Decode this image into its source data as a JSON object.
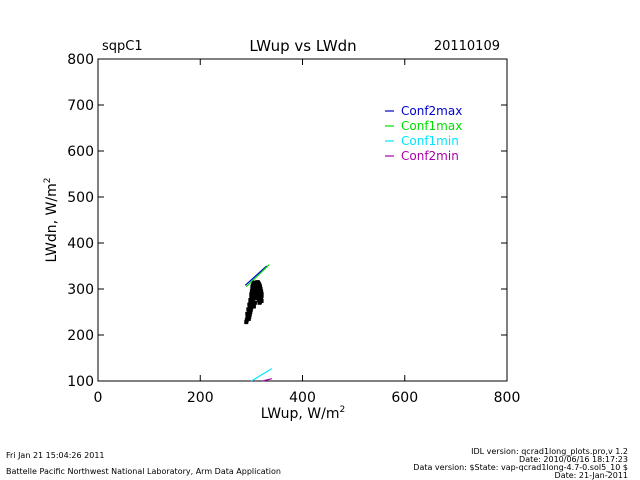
{
  "header": {
    "site": "sqpC1",
    "title": "LWup vs LWdn",
    "date": "20110109"
  },
  "colors": {
    "Conf2max": "#0000cc",
    "Conf1max": "#00dd00",
    "Conf1min": "#00e5ff",
    "Conf2min": "#aa00aa",
    "points": "#000000"
  },
  "chart_data": {
    "type": "scatter",
    "title": "LWup vs LWdn",
    "xlabel": "LWup, W/m",
    "xlabel_sup": "2",
    "ylabel": "LWdn, W/m",
    "ylabel_sup": "2",
    "xlim": [
      0,
      800
    ],
    "ylim": [
      100,
      800
    ],
    "xticks": [
      0,
      200,
      400,
      600,
      800
    ],
    "yticks": [
      100,
      200,
      300,
      400,
      500,
      600,
      700,
      800
    ],
    "grid": false,
    "legend_position": "top-right",
    "series": [
      {
        "name": "Conf2max",
        "kind": "line",
        "x": [
          288,
          330
        ],
        "y": [
          308,
          350
        ]
      },
      {
        "name": "Conf1max",
        "kind": "line",
        "x": [
          290,
          335
        ],
        "y": [
          305,
          353
        ]
      },
      {
        "name": "Conf1min",
        "kind": "line",
        "x": [
          300,
          340
        ],
        "y": [
          100,
          127
        ]
      },
      {
        "name": "Conf2min",
        "kind": "line",
        "x": [
          322,
          340
        ],
        "y": [
          100,
          105
        ]
      },
      {
        "name": "",
        "kind": "points",
        "x": [
          290,
          291,
          292,
          293,
          294,
          295,
          296,
          297,
          298,
          299,
          300,
          300,
          301,
          302,
          302,
          303,
          304,
          305,
          306,
          307,
          308,
          309,
          310,
          311,
          312,
          313,
          314,
          315,
          316,
          317,
          318,
          319,
          320,
          320,
          319,
          318,
          317,
          316,
          315,
          314,
          313,
          312,
          311,
          310,
          309,
          308,
          307,
          306,
          305,
          304,
          303,
          302,
          301,
          300,
          299,
          298,
          297,
          296,
          295,
          312,
          313,
          314,
          315,
          316,
          317,
          318,
          319,
          320,
          318,
          316,
          314,
          312,
          310,
          308,
          306,
          304,
          302,
          300,
          298,
          296,
          294,
          292,
          305,
          307,
          309,
          311
        ],
        "y": [
          228,
          232,
          236,
          240,
          245,
          250,
          255,
          262,
          268,
          275,
          282,
          289,
          295,
          300,
          305,
          308,
          310,
          312,
          313,
          314,
          313,
          312,
          313,
          314,
          315,
          314,
          312,
          310,
          308,
          305,
          300,
          295,
          290,
          285,
          280,
          276,
          272,
          270,
          275,
          280,
          285,
          290,
          295,
          300,
          305,
          300,
          295,
          290,
          285,
          280,
          275,
          270,
          265,
          260,
          255,
          250,
          245,
          240,
          235,
          300,
          296,
          292,
          288,
          284,
          280,
          278,
          276,
          274,
          278,
          282,
          286,
          290,
          294,
          298,
          302,
          306,
          296,
          286,
          276,
          266,
          256,
          246,
          262,
          270,
          280,
          290
        ]
      }
    ]
  },
  "footer": {
    "left_line1": "Fri Jan 21 15:04:26 2011",
    "left_line2": "Battelle Pacific Northwest National Laboratory, Arm Data Application",
    "right_line1": "IDL version: qcrad1long_plots.pro,v 1.2",
    "right_line2": "Date: 2010/06/16 18:17:23",
    "right_line3": "Data version: $State: vap-qcrad1long-4.7-0.sol5_10 $",
    "right_line4": "Date: 21-Jan-2011"
  }
}
